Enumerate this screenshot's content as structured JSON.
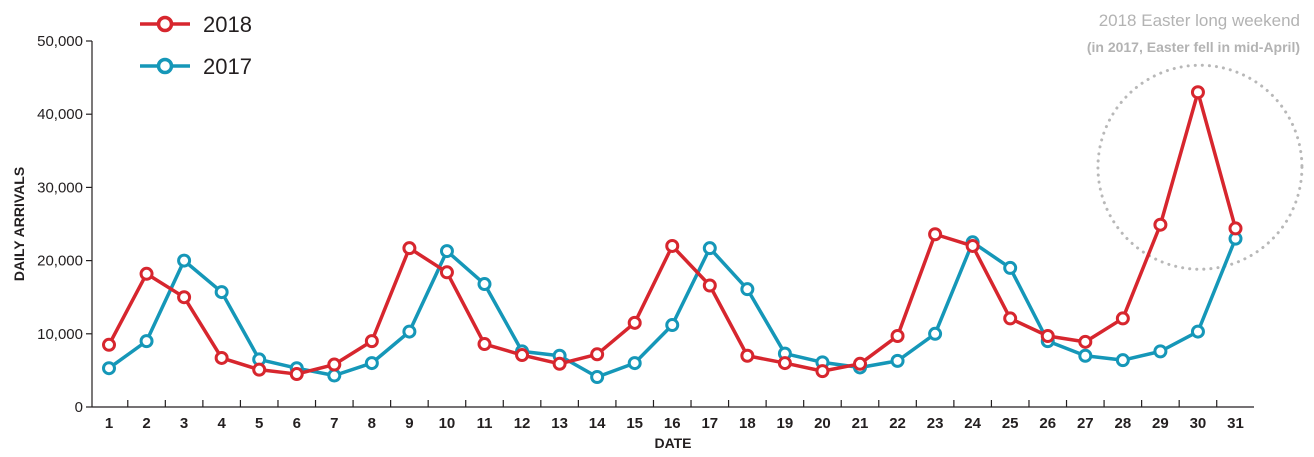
{
  "chart_data": {
    "type": "line",
    "title": "",
    "xlabel": "DATE",
    "ylabel": "DAILY ARRIVALS",
    "ylim": [
      0,
      50000
    ],
    "yticks": [
      "0",
      "10,000",
      "20,000",
      "30,000",
      "40,000",
      "50,000"
    ],
    "categories": [
      "1",
      "2",
      "3",
      "4",
      "5",
      "6",
      "7",
      "8",
      "9",
      "10",
      "11",
      "12",
      "13",
      "14",
      "15",
      "16",
      "17",
      "18",
      "19",
      "20",
      "21",
      "22",
      "23",
      "24",
      "25",
      "26",
      "27",
      "28",
      "29",
      "30",
      "31"
    ],
    "series": [
      {
        "name": "2018",
        "color": "#d7262e",
        "values": [
          8500,
          18200,
          15000,
          6700,
          5100,
          4500,
          5800,
          9000,
          21700,
          18400,
          8600,
          7100,
          5900,
          7200,
          11500,
          22000,
          16600,
          7000,
          6000,
          4900,
          5900,
          9700,
          23600,
          22000,
          12100,
          9700,
          8900,
          12100,
          24900,
          43000,
          24400
        ]
      },
      {
        "name": "2017",
        "color": "#1597b8",
        "values": [
          5300,
          9000,
          20000,
          15700,
          6500,
          5300,
          4300,
          6000,
          10300,
          21300,
          16800,
          7600,
          7000,
          4100,
          6000,
          11200,
          21700,
          16100,
          7300,
          6100,
          5400,
          6300,
          10000,
          22500,
          19000,
          9000,
          7000,
          6400,
          7600,
          10300,
          23000
        ]
      }
    ],
    "legend": "top-left",
    "grid": false,
    "annotation": {
      "title": "2018 Easter long weekend",
      "subtitle": "(in 2017, Easter fell in mid-April)"
    }
  }
}
